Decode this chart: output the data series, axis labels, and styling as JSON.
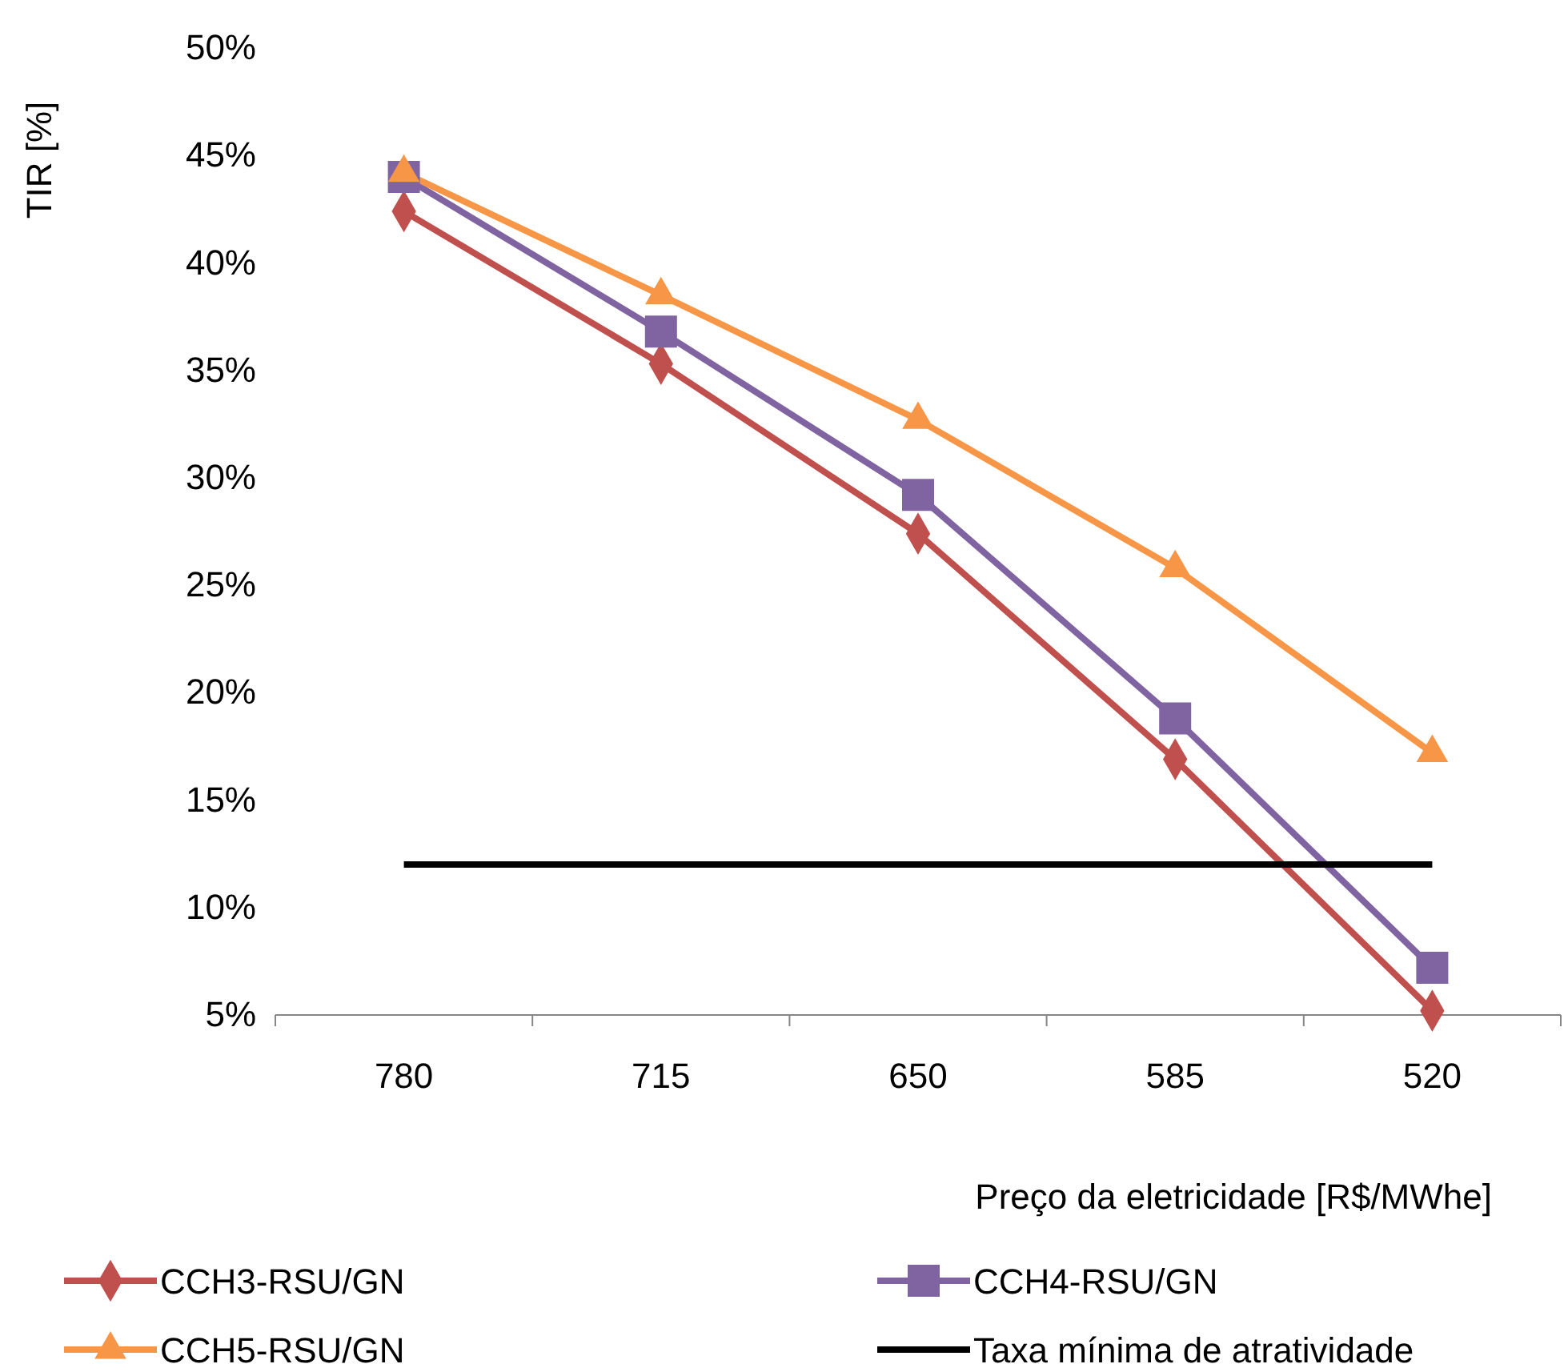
{
  "chart_data": {
    "type": "line",
    "xlabel": "Preço da eletricidade [R$/MWhe]",
    "ylabel": "TIR [%]",
    "categories": [
      "780",
      "715",
      "650",
      "585",
      "520"
    ],
    "ylim": [
      5,
      50
    ],
    "yticks": [
      {
        "value": 5,
        "label": "5%"
      },
      {
        "value": 10,
        "label": "10%"
      },
      {
        "value": 15,
        "label": "15%"
      },
      {
        "value": 20,
        "label": "20%"
      },
      {
        "value": 25,
        "label": "25%"
      },
      {
        "value": 30,
        "label": "30%"
      },
      {
        "value": 35,
        "label": "35%"
      },
      {
        "value": 40,
        "label": "40%"
      },
      {
        "value": 45,
        "label": "45%"
      },
      {
        "value": 50,
        "label": "50%"
      }
    ],
    "grid": false,
    "legend": "bottom",
    "series": [
      {
        "name": "CCH3-RSU/GN",
        "color": "#c0504d",
        "marker": "diamond",
        "values": [
          42.4,
          35.3,
          27.4,
          16.9,
          5.2
        ]
      },
      {
        "name": "CCH4-RSU/GN",
        "color": "#8064a2",
        "marker": "square",
        "values": [
          44.0,
          36.8,
          29.2,
          18.8,
          7.2
        ]
      },
      {
        "name": "CCH5-RSU/GN",
        "color": "#f79646",
        "marker": "triangle",
        "values": [
          44.2,
          38.5,
          32.7,
          25.8,
          17.2
        ]
      },
      {
        "name": "Taxa mínima de atratividade",
        "color": "#000000",
        "marker": "none",
        "values": [
          12,
          12,
          12,
          12,
          12
        ]
      }
    ]
  }
}
